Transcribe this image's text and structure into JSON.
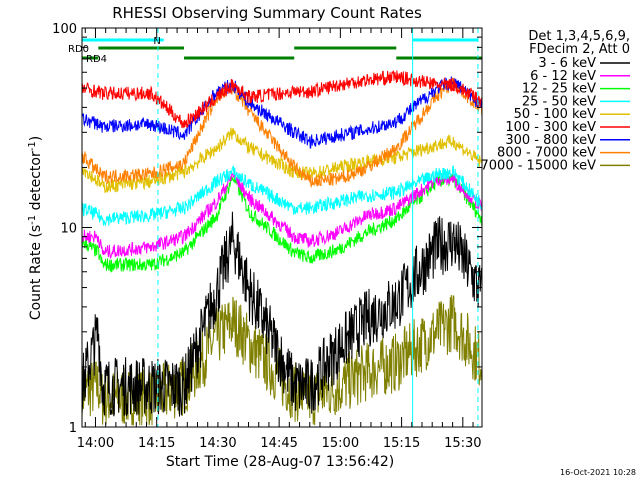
{
  "chart_data": {
    "type": "line",
    "title": "RHESSI Observing Summary Count Rates",
    "xlabel": "Start Time (28-Aug-07 13:56:42)",
    "ylabel": "Count Rate (s-1 detector-1)",
    "yscale": "log",
    "ylim": [
      1,
      100
    ],
    "xlim_minutes_after_13:56:42": [
      0,
      98
    ],
    "x_tick_labels": [
      "14:00",
      "14:15",
      "14:30",
      "14:45",
      "15:00",
      "15:15",
      "15:30"
    ],
    "x_tick_minutes": [
      3.3,
      18.3,
      33.3,
      48.3,
      63.3,
      78.3,
      93.3
    ],
    "y_tick_labels": [
      "1",
      "10",
      "100"
    ],
    "y_tick_values": [
      1,
      10,
      100
    ],
    "grid": false,
    "legend_placement": "outside-right",
    "legend_header": [
      "Det 1,3,4,5,6,9,",
      "FDecim 2, Att 0"
    ],
    "flags": {
      "N": {
        "label": "N",
        "color": "#00ffff",
        "segments": [
          [
            0,
            20
          ],
          [
            81,
            97
          ]
        ]
      },
      "RD0": {
        "label": "RD0",
        "color": "#008000",
        "segments": [
          [
            4,
            25
          ],
          [
            52,
            77
          ]
        ]
      },
      "RD4": {
        "label": "RD4",
        "color": "#008000",
        "segments": [
          [
            0,
            4
          ],
          [
            25,
            52
          ],
          [
            77,
            98
          ]
        ]
      },
      "cyan_markers_min": [
        0,
        18.6,
        81,
        97
      ]
    },
    "x_minutes": [
      0,
      4,
      5,
      17,
      25,
      33,
      37,
      41,
      52,
      56,
      63,
      70,
      77,
      87,
      91,
      98
    ],
    "series": [
      {
        "name": "3 - 6 keV",
        "color": "#000000",
        "values": [
          1.6,
          3.0,
          1.6,
          1.6,
          1.6,
          4.8,
          8.8,
          4.8,
          1.6,
          1.6,
          2.5,
          3.5,
          4.2,
          8.0,
          8.6,
          4.6
        ]
      },
      {
        "name": "6 - 12 keV",
        "color": "#ff00ff",
        "values": [
          9.0,
          9.0,
          7.5,
          8.0,
          9.0,
          13.5,
          18.5,
          14.0,
          9.0,
          8.5,
          9.5,
          11.5,
          12.5,
          17.5,
          17.5,
          12.5
        ]
      },
      {
        "name": "12 - 25 keV",
        "color": "#00ff00",
        "values": [
          8.5,
          7.5,
          6.5,
          6.5,
          7.5,
          11.5,
          18.0,
          12.0,
          7.5,
          7.0,
          7.8,
          9.5,
          11.0,
          17.0,
          17.5,
          11.0
        ]
      },
      {
        "name": "25 - 50 keV",
        "color": "#00ffff",
        "values": [
          12.5,
          11.5,
          11.0,
          11.5,
          12.5,
          17.0,
          19.0,
          16.5,
          12.5,
          12.5,
          13.5,
          14.5,
          15.0,
          18.5,
          19.0,
          13.0
        ]
      },
      {
        "name": "50 - 100 keV",
        "color": "#e0c000",
        "values": [
          20.0,
          17.0,
          16.0,
          17.0,
          19.0,
          25.0,
          30.0,
          25.0,
          19.0,
          18.5,
          20.0,
          21.5,
          22.5,
          26.0,
          27.0,
          21.0
        ]
      },
      {
        "name": "100 - 300 keV",
        "color": "#ff0000",
        "values": [
          50.0,
          48.0,
          47.0,
          47.0,
          33.0,
          45.0,
          52.0,
          45.0,
          48.0,
          48.0,
          52.0,
          55.0,
          57.0,
          52.0,
          52.0,
          43.0
        ]
      },
      {
        "name": "300 - 800 keV",
        "color": "#0000ff",
        "values": [
          35.0,
          33.0,
          32.0,
          33.0,
          29.0,
          48.0,
          52.0,
          42.0,
          30.0,
          27.0,
          29.0,
          31.0,
          34.0,
          50.0,
          54.0,
          41.0
        ]
      },
      {
        "name": "800 - 7000 keV",
        "color": "#ff8000",
        "values": [
          23.0,
          19.0,
          18.0,
          18.5,
          21.0,
          45.0,
          50.0,
          38.0,
          20.0,
          17.0,
          17.5,
          20.0,
          25.0,
          46.0,
          53.0,
          39.0
        ]
      },
      {
        "name": "7000 - 15000 keV",
        "color": "#808000",
        "values": [
          1.5,
          1.6,
          1.4,
          1.4,
          1.6,
          2.8,
          3.4,
          2.6,
          1.5,
          1.4,
          1.6,
          1.9,
          2.1,
          3.0,
          3.4,
          2.1
        ]
      }
    ]
  },
  "footer": {
    "timestamp": "16-Oct-2021 10:28"
  }
}
